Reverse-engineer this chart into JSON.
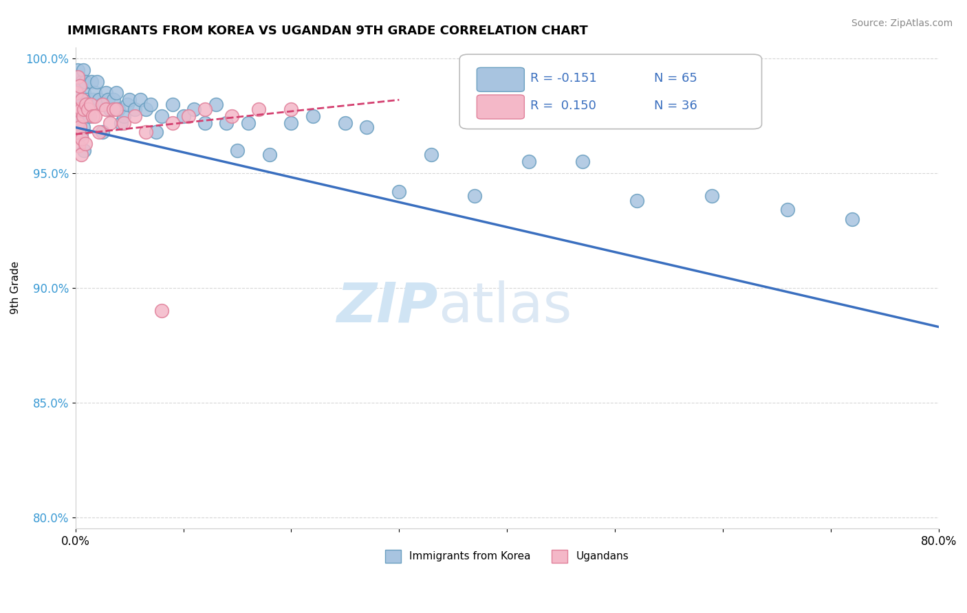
{
  "title": "IMMIGRANTS FROM KOREA VS UGANDAN 9TH GRADE CORRELATION CHART",
  "source_text": "Source: ZipAtlas.com",
  "ylabel": "9th Grade",
  "xlim": [
    0.0,
    0.8
  ],
  "ylim": [
    0.795,
    1.005
  ],
  "xticks": [
    0.0,
    0.1,
    0.2,
    0.3,
    0.4,
    0.5,
    0.6,
    0.7,
    0.8
  ],
  "xticklabels": [
    "0.0%",
    "",
    "",
    "",
    "",
    "",
    "",
    "",
    "80.0%"
  ],
  "yticks": [
    0.8,
    0.85,
    0.9,
    0.95,
    1.0
  ],
  "yticklabels": [
    "80.0%",
    "85.0%",
    "90.0%",
    "95.0%",
    "100.0%"
  ],
  "legend_korea_label": "Immigrants from Korea",
  "legend_ugandan_label": "Ugandans",
  "korea_R": -0.151,
  "korea_N": 65,
  "ugandan_R": 0.15,
  "ugandan_N": 36,
  "korea_color": "#a8c4e0",
  "korea_edge_color": "#6a9fc0",
  "ugandan_color": "#f4b8c8",
  "ugandan_edge_color": "#e0809a",
  "trend_korea_color": "#3a6fbf",
  "trend_ugandan_color": "#d44070",
  "background_color": "#ffffff",
  "watermark_zip": "ZIP",
  "watermark_atlas": "atlas",
  "watermark_color": "#d0e4f4",
  "grid_color": "#cccccc",
  "korea_scatter_x": [
    0.002,
    0.002,
    0.003,
    0.003,
    0.003,
    0.004,
    0.004,
    0.005,
    0.005,
    0.006,
    0.006,
    0.007,
    0.007,
    0.008,
    0.008,
    0.009,
    0.01,
    0.011,
    0.012,
    0.013,
    0.015,
    0.016,
    0.018,
    0.02,
    0.022,
    0.025,
    0.025,
    0.028,
    0.03,
    0.032,
    0.035,
    0.038,
    0.04,
    0.042,
    0.045,
    0.048,
    0.05,
    0.055,
    0.06,
    0.065,
    0.07,
    0.075,
    0.08,
    0.09,
    0.1,
    0.11,
    0.12,
    0.13,
    0.14,
    0.15,
    0.16,
    0.18,
    0.2,
    0.22,
    0.25,
    0.27,
    0.3,
    0.33,
    0.37,
    0.42,
    0.47,
    0.52,
    0.59,
    0.66,
    0.72
  ],
  "korea_scatter_y": [
    0.99,
    0.995,
    0.985,
    0.992,
    0.978,
    0.988,
    0.972,
    0.982,
    0.967,
    0.99,
    0.975,
    0.995,
    0.97,
    0.985,
    0.96,
    0.99,
    0.98,
    0.982,
    0.978,
    0.975,
    0.99,
    0.982,
    0.985,
    0.99,
    0.982,
    0.98,
    0.968,
    0.985,
    0.982,
    0.978,
    0.982,
    0.985,
    0.978,
    0.972,
    0.975,
    0.98,
    0.982,
    0.978,
    0.982,
    0.978,
    0.98,
    0.968,
    0.975,
    0.98,
    0.975,
    0.978,
    0.972,
    0.98,
    0.972,
    0.96,
    0.972,
    0.958,
    0.972,
    0.975,
    0.972,
    0.97,
    0.942,
    0.958,
    0.94,
    0.955,
    0.955,
    0.938,
    0.94,
    0.934,
    0.93
  ],
  "ugandan_scatter_x": [
    0.001,
    0.001,
    0.002,
    0.002,
    0.003,
    0.003,
    0.004,
    0.004,
    0.005,
    0.005,
    0.006,
    0.006,
    0.007,
    0.008,
    0.009,
    0.01,
    0.012,
    0.014,
    0.016,
    0.018,
    0.022,
    0.025,
    0.028,
    0.032,
    0.035,
    0.038,
    0.045,
    0.055,
    0.065,
    0.08,
    0.09,
    0.105,
    0.12,
    0.145,
    0.17,
    0.2
  ],
  "ugandan_scatter_y": [
    0.985,
    0.968,
    0.992,
    0.972,
    0.978,
    0.962,
    0.988,
    0.97,
    0.978,
    0.958,
    0.982,
    0.965,
    0.975,
    0.978,
    0.963,
    0.98,
    0.978,
    0.98,
    0.975,
    0.975,
    0.968,
    0.98,
    0.978,
    0.972,
    0.978,
    0.978,
    0.972,
    0.975,
    0.968,
    0.89,
    0.972,
    0.975,
    0.978,
    0.975,
    0.978,
    0.978
  ],
  "trend_korea_x0": 0.0,
  "trend_korea_y0": 0.97,
  "trend_korea_x1": 0.8,
  "trend_korea_y1": 0.883,
  "trend_ugandan_x0": 0.0,
  "trend_ugandan_y0": 0.967,
  "trend_ugandan_x1": 0.3,
  "trend_ugandan_y1": 0.982
}
